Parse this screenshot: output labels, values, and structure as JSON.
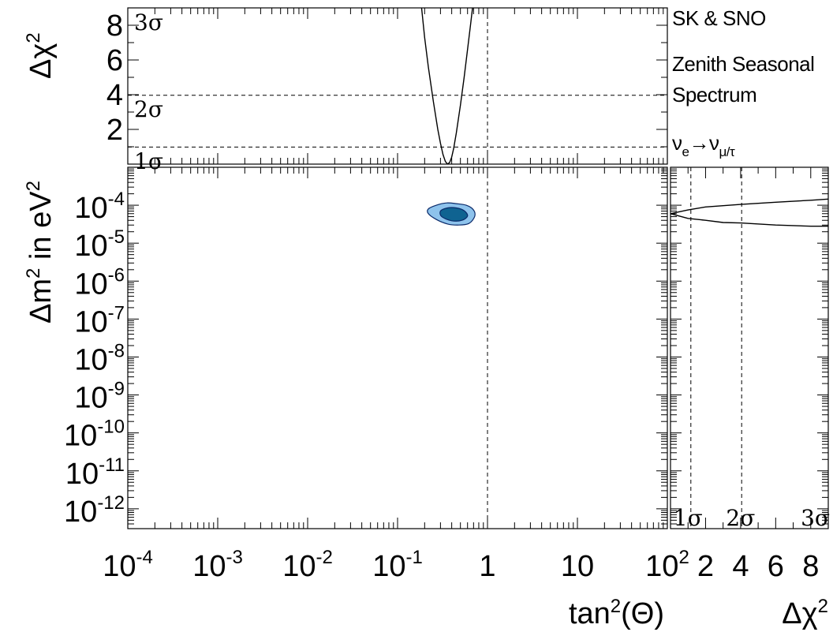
{
  "legend": {
    "line1": "SK & SNO",
    "line2": "Zenith Seasonal",
    "line3": "Spectrum",
    "nu": "ν",
    "nu_sub_e": "e",
    "arrow": "→",
    "nu2": "ν",
    "nu_sub_mutau": "μ/τ"
  },
  "chart_data": [
    {
      "id": "top-panel",
      "type": "line",
      "xlabel": "",
      "ylabel": "Δχ",
      "ylabel_sup": "2",
      "x_scale": "log",
      "xlim": [
        0.0001,
        100
      ],
      "ylim": [
        0,
        9
      ],
      "yticks": [
        "2",
        "4",
        "6",
        "8"
      ],
      "sigma_labels": [
        {
          "text": "1σ",
          "dchi2": 1
        },
        {
          "text": "2σ",
          "dchi2": 4
        },
        {
          "text": "3σ",
          "dchi2": 9
        }
      ],
      "reference_lines": {
        "dchi2": [
          1,
          4
        ],
        "tan2theta": [
          1
        ]
      },
      "series": [
        {
          "x": [
            0.18,
            0.2,
            0.22,
            0.25,
            0.28,
            0.3,
            0.32,
            0.34,
            0.36,
            0.38,
            0.4,
            0.42,
            0.45,
            0.5,
            0.55,
            0.6,
            0.65,
            0.7
          ],
          "y": [
            9.6,
            7.3,
            5.6,
            3.6,
            2.0,
            1.2,
            0.55,
            0.15,
            0.0,
            0.1,
            0.4,
            0.9,
            1.8,
            3.4,
            5.0,
            6.6,
            8.1,
            9.5
          ]
        }
      ]
    },
    {
      "id": "main-panel",
      "type": "contour",
      "xlabel": "tan",
      "xlabel_sup": "2",
      "xlabel_rest": "(Θ)",
      "ylabel": "Δm",
      "ylabel_sup": "2",
      "ylabel_rest": " in eV",
      "ylabel_sup2": "2",
      "x_scale": "log",
      "y_scale": "log",
      "xlim": [
        0.0001,
        100
      ],
      "ylim": [
        3e-13,
        0.001
      ],
      "xticks": [
        {
          "base": "10",
          "exp": "-4"
        },
        {
          "base": "10",
          "exp": "-3"
        },
        {
          "base": "10",
          "exp": "-2"
        },
        {
          "base": "10",
          "exp": "-1"
        },
        {
          "base": "1",
          "exp": ""
        },
        {
          "base": "10",
          "exp": ""
        },
        {
          "base": "10",
          "exp": "2"
        }
      ],
      "yticks": [
        {
          "base": "10",
          "exp": "-4"
        },
        {
          "base": "10",
          "exp": "-5"
        },
        {
          "base": "10",
          "exp": "-6"
        },
        {
          "base": "10",
          "exp": "-7"
        },
        {
          "base": "10",
          "exp": "-8"
        },
        {
          "base": "10",
          "exp": "-9"
        },
        {
          "base": "10",
          "exp": "-10"
        },
        {
          "base": "10",
          "exp": "-11"
        },
        {
          "base": "10",
          "exp": "-12"
        }
      ],
      "reference_lines": {
        "tan2theta": [
          1
        ]
      },
      "contours": [
        {
          "level": "outer",
          "color": "#8ec3ec",
          "tan2theta": [
            0.22,
            0.27,
            0.35,
            0.45,
            0.58,
            0.7,
            0.72,
            0.62,
            0.48,
            0.36,
            0.27,
            0.22
          ],
          "dm2": [
            8e-05,
            0.0001,
            0.000115,
            0.00011,
            0.0001,
            7.5e-05,
            5e-05,
            3.3e-05,
            3e-05,
            3.2e-05,
            4.2e-05,
            6e-05
          ]
        },
        {
          "level": "inner",
          "color": "#0f6391",
          "tan2theta": [
            0.3,
            0.36,
            0.45,
            0.55,
            0.6,
            0.52,
            0.4,
            0.31
          ],
          "dm2": [
            7e-05,
            8.5e-05,
            8.5e-05,
            7.2e-05,
            5.2e-05,
            4e-05,
            3.9e-05,
            5e-05
          ]
        }
      ]
    },
    {
      "id": "right-panel",
      "type": "line",
      "xlabel": "Δχ",
      "xlabel_sup": "2",
      "xlim": [
        0,
        9
      ],
      "y_scale": "log",
      "ylim": [
        3e-13,
        0.001
      ],
      "xticks": [
        "2",
        "4",
        "6",
        "8"
      ],
      "sigma_labels": [
        {
          "text": "1σ",
          "dchi2": 1
        },
        {
          "text": "2σ",
          "dchi2": 4
        },
        {
          "text": "3σ",
          "dchi2": 9
        }
      ],
      "reference_lines": {
        "dchi2": [
          1,
          4
        ]
      },
      "series": [
        {
          "name": "",
          "x": [
            0,
            1,
            2,
            4,
            6,
            8,
            9
          ],
          "y": [
            6e-05,
            7.5e-05,
            9e-05,
            0.000105,
            0.00012,
            0.000135,
            0.000145
          ]
        },
        {
          "name": "",
          "x": [
            0,
            0.5,
            1,
            2,
            3,
            4,
            6,
            8,
            9
          ],
          "y": [
            6e-05,
            5.2e-05,
            4.5e-05,
            4e-05,
            3.5e-05,
            3.4e-05,
            3e-05,
            2.8e-05,
            2.8e-05
          ]
        }
      ]
    }
  ]
}
